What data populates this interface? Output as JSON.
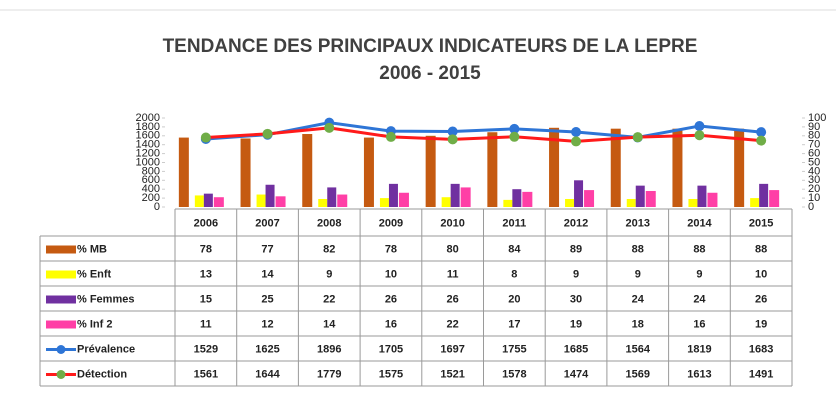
{
  "chart_data": {
    "type": "bar-line-table",
    "title": "TENDANCE DES PRINCIPAUX INDICATEURS DE LA LEPRE",
    "subtitle": "2006 - 2015",
    "categories": [
      "2006",
      "2007",
      "2008",
      "2009",
      "2010",
      "2011",
      "2012",
      "2013",
      "2014",
      "2015"
    ],
    "series": [
      {
        "name": "% MB",
        "type": "bar",
        "axis": "y2",
        "color": "#c55a11",
        "values": [
          78,
          77,
          82,
          78,
          80,
          84,
          89,
          88,
          88,
          88
        ]
      },
      {
        "name": "% Enft",
        "type": "bar",
        "axis": "y2",
        "color": "#ffff00",
        "values": [
          13,
          14,
          9,
          10,
          11,
          8,
          9,
          9,
          9,
          10
        ]
      },
      {
        "name": "% Femmes",
        "type": "bar",
        "axis": "y2",
        "color": "#7030a0",
        "values": [
          15,
          25,
          22,
          26,
          26,
          20,
          30,
          24,
          24,
          26
        ]
      },
      {
        "name": "% Inf 2",
        "type": "bar",
        "axis": "y2",
        "color": "#ff3fa6",
        "values": [
          11,
          12,
          14,
          16,
          22,
          17,
          19,
          18,
          16,
          19
        ]
      },
      {
        "name": "Prévalence",
        "type": "line",
        "color": "#2e75d6",
        "marker_color": "#2e75d6",
        "values": [
          1529,
          1625,
          1896,
          1705,
          1697,
          1755,
          1685,
          1564,
          1819,
          1683
        ]
      },
      {
        "name": "Détection",
        "type": "line",
        "color": "#ff1a1a",
        "marker_color": "#70ad47",
        "values": [
          1561,
          1644,
          1779,
          1575,
          1521,
          1578,
          1474,
          1569,
          1613,
          1491
        ]
      }
    ],
    "ylim": [
      0,
      2000
    ],
    "yticks": [
      0,
      200,
      400,
      600,
      800,
      1000,
      1200,
      1400,
      1600,
      1800,
      2000
    ],
    "y2lim": [
      0,
      100
    ],
    "y2ticks": [
      0,
      10,
      20,
      30,
      40,
      50,
      60,
      70,
      80,
      90,
      100
    ]
  }
}
